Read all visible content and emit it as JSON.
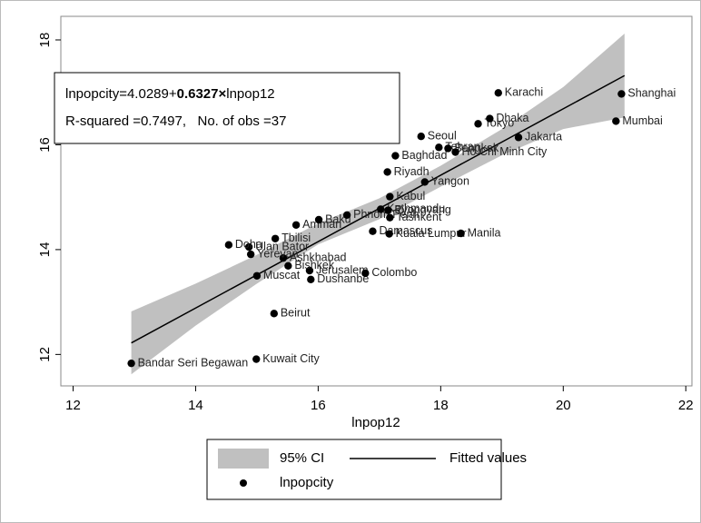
{
  "chart_data": {
    "type": "scatter",
    "xlabel": "lnpop12",
    "xlim": [
      11.8,
      22.1
    ],
    "ylim": [
      11.4,
      18.45
    ],
    "xticks": [
      12,
      14,
      16,
      18,
      20,
      22
    ],
    "yticks": [
      12,
      14,
      16,
      18
    ],
    "annotation": {
      "prefix": "lnpopcity=4.0289+",
      "bold": "0.6327×",
      "suffix": "lnpop12",
      "line2": "R-squared =0.7497,   No. of obs =37"
    },
    "series": [
      {
        "name": "95% CI",
        "type": "area",
        "color": "#c0c0c0",
        "x": [
          12.95,
          14,
          15,
          16,
          17,
          18,
          19,
          20,
          21
        ],
        "upper": [
          12.82,
          13.35,
          13.9,
          14.5,
          14.98,
          15.6,
          16.3,
          17.1,
          18.12
        ],
        "lower": [
          11.62,
          12.55,
          13.35,
          14.1,
          14.58,
          15.2,
          15.8,
          16.3,
          16.52
        ]
      },
      {
        "name": "Fitted values",
        "type": "line",
        "color": "#000000",
        "x": [
          12.95,
          21.0
        ],
        "values": [
          12.22,
          17.32
        ]
      },
      {
        "name": "lnpopcity",
        "type": "scatter",
        "color": "#000000",
        "x": [
          12.95,
          14.99,
          15.28,
          15.88,
          15.86,
          16.77,
          15.0,
          15.51,
          15.43,
          14.9,
          14.87,
          14.54,
          15.3,
          15.64,
          16.01,
          16.47,
          16.89,
          17.16,
          18.33,
          17.17,
          17.02,
          17.14,
          17.17,
          17.74,
          17.13,
          17.26,
          17.68,
          17.97,
          18.12,
          18.24,
          18.61,
          18.8,
          19.27,
          18.94,
          20.95,
          20.86
        ],
        "values": [
          11.83,
          11.91,
          12.78,
          13.43,
          13.6,
          13.55,
          13.5,
          13.69,
          13.84,
          13.91,
          14.05,
          14.09,
          14.21,
          14.47,
          14.57,
          14.66,
          14.35,
          14.3,
          14.31,
          14.61,
          14.77,
          14.75,
          15.01,
          15.29,
          15.48,
          15.79,
          16.16,
          15.95,
          15.93,
          15.86,
          16.4,
          16.5,
          16.14,
          16.99,
          16.97,
          16.45
        ],
        "labels": [
          "Bandar Seri Begawan",
          "Kuwait City",
          "Beirut",
          "Dushanbe",
          "Jerusalem",
          "Colombo",
          "Muscat",
          "Bishkek",
          "Ashkhabad",
          "Yerevan",
          "Ulan Bator",
          "Doha",
          "Tbilisi",
          "Amman",
          "Baku",
          "Phnom Penh",
          "Damascus",
          "Kuala Lumpur",
          "Manila",
          "Tashkent",
          "Kathmandu",
          "Pyongyang",
          "Kabul",
          "Yangon",
          "Riyadh",
          "Baghdad",
          "Seoul",
          "Tehran",
          "Bangkok",
          "Ho Chi Minh City",
          "Tokyo",
          "Dhaka",
          "Jakarta",
          "Karachi",
          "Shanghai",
          "Mumbai"
        ]
      }
    ]
  }
}
